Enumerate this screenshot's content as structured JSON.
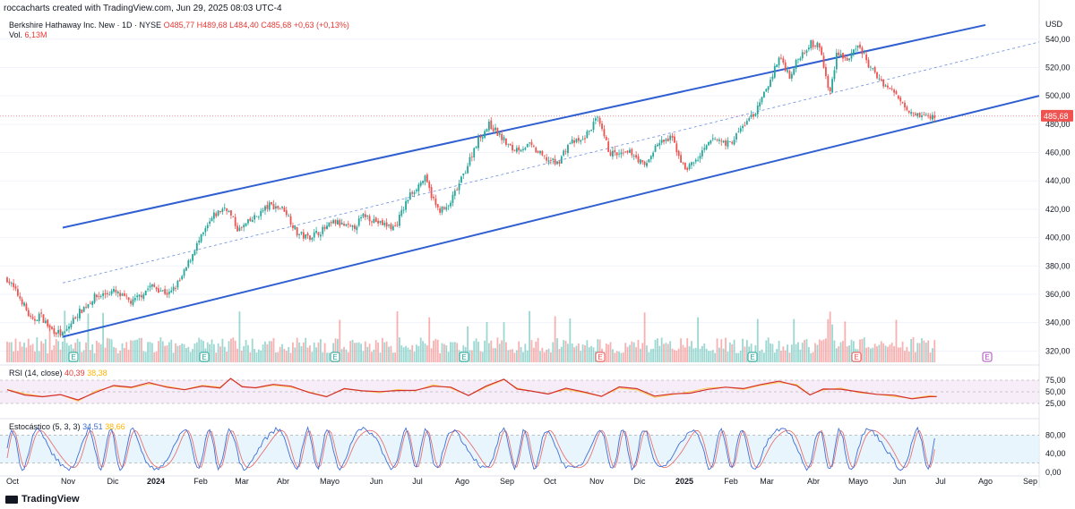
{
  "header": {
    "credit": "roccacharts created with TradingView.com, Jun 29, 2025 08:03 UTC-4"
  },
  "legend": {
    "symbol": "Berkshire Hathaway Inc. New · 1D · NYSE",
    "o": "O485,77",
    "h": "H489,68",
    "l": "L484,40",
    "c": "C485,68",
    "chg": "+0,63 (+0,13%)",
    "vol_label": "Vol.",
    "vol_value": "6,13M"
  },
  "rsi_legend": {
    "label": "RSI (14, close)",
    "value": "40,39",
    "ma": "38,38"
  },
  "stoch_legend": {
    "label": "Estocástico (5, 3, 3)",
    "k": "34,51",
    "d": "38,66"
  },
  "footer": {
    "logo": "TradingView"
  },
  "colors": {
    "up": "#26a69a",
    "down": "#ef5350",
    "channel": "#2f5fd0",
    "rsi": "#d32f2f",
    "rsi_ma": "#fbc02d",
    "stoch_k": "#3f6fd8",
    "stoch_d": "#e57373"
  },
  "chart_data": {
    "type": "candlestick",
    "currency": "USD",
    "last_price": "485,68",
    "y_ticks": [
      "540,00",
      "520,00",
      "500,00",
      "480,00",
      "460,00",
      "440,00",
      "420,00",
      "400,00",
      "380,00",
      "360,00",
      "340,00",
      "320,00"
    ],
    "ylim": [
      312,
      555
    ],
    "x_labels": [
      "Oct",
      "Nov",
      "Dic",
      "2024",
      "Feb",
      "Mar",
      "Abr",
      "Mayo",
      "Jun",
      "Jul",
      "Ago",
      "Sep",
      "Oct",
      "Nov",
      "Dic",
      "2025",
      "Feb",
      "Mar",
      "Abr",
      "Mayo",
      "Jun",
      "Jul",
      "Ago",
      "Sep"
    ],
    "x_label_bold": [
      "2024",
      "2025"
    ],
    "price_path": [
      [
        0,
        371
      ],
      [
        12,
        355
      ],
      [
        20,
        340
      ],
      [
        26,
        346
      ],
      [
        34,
        336
      ],
      [
        45,
        331
      ],
      [
        55,
        345
      ],
      [
        70,
        358
      ],
      [
        85,
        362
      ],
      [
        100,
        354
      ],
      [
        115,
        366
      ],
      [
        130,
        360
      ],
      [
        140,
        372
      ],
      [
        150,
        392
      ],
      [
        158,
        404
      ],
      [
        165,
        415
      ],
      [
        175,
        422
      ],
      [
        185,
        405
      ],
      [
        198,
        414
      ],
      [
        210,
        423
      ],
      [
        222,
        420
      ],
      [
        232,
        403
      ],
      [
        240,
        400
      ],
      [
        252,
        405
      ],
      [
        262,
        411
      ],
      [
        276,
        406
      ],
      [
        286,
        416
      ],
      [
        298,
        410
      ],
      [
        310,
        407
      ],
      [
        322,
        430
      ],
      [
        334,
        442
      ],
      [
        344,
        420
      ],
      [
        352,
        420
      ],
      [
        364,
        442
      ],
      [
        376,
        468
      ],
      [
        386,
        480
      ],
      [
        396,
        470
      ],
      [
        404,
        462
      ],
      [
        418,
        465
      ],
      [
        430,
        456
      ],
      [
        440,
        452
      ],
      [
        450,
        467
      ],
      [
        460,
        468
      ],
      [
        472,
        484
      ],
      [
        482,
        460
      ],
      [
        490,
        458
      ],
      [
        500,
        460
      ],
      [
        510,
        450
      ],
      [
        520,
        466
      ],
      [
        532,
        470
      ],
      [
        542,
        448
      ],
      [
        552,
        455
      ],
      [
        565,
        470
      ],
      [
        578,
        466
      ],
      [
        590,
        480
      ],
      [
        600,
        490
      ],
      [
        610,
        510
      ],
      [
        618,
        528
      ],
      [
        626,
        514
      ],
      [
        634,
        528
      ],
      [
        642,
        537
      ],
      [
        650,
        535
      ],
      [
        658,
        500
      ],
      [
        664,
        532
      ],
      [
        672,
        525
      ],
      [
        682,
        535
      ],
      [
        690,
        520
      ],
      [
        702,
        508
      ],
      [
        712,
        500
      ],
      [
        722,
        490
      ],
      [
        732,
        486
      ],
      [
        742,
        485
      ]
    ],
    "x_step": 1,
    "channel_upper": [
      [
        70,
        407
      ],
      [
        1100,
        550
      ]
    ],
    "channel_lower": [
      [
        70,
        330
      ],
      [
        1160,
        500
      ]
    ],
    "channel_mid": [
      [
        70,
        368
      ],
      [
        1160,
        538
      ]
    ],
    "rsi": {
      "levels": [
        "75,00",
        "50,00",
        "25,00"
      ],
      "path": [
        [
          0,
          55
        ],
        [
          20,
          46
        ],
        [
          40,
          40
        ],
        [
          60,
          44
        ],
        [
          80,
          30
        ],
        [
          100,
          52
        ],
        [
          120,
          62
        ],
        [
          140,
          58
        ],
        [
          160,
          67
        ],
        [
          180,
          62
        ],
        [
          200,
          55
        ],
        [
          220,
          64
        ],
        [
          240,
          60
        ],
        [
          252,
          78
        ],
        [
          265,
          62
        ],
        [
          280,
          58
        ],
        [
          300,
          64
        ],
        [
          320,
          60
        ],
        [
          340,
          50
        ],
        [
          360,
          40
        ],
        [
          380,
          56
        ],
        [
          400,
          52
        ],
        [
          420,
          48
        ],
        [
          440,
          55
        ],
        [
          460,
          52
        ],
        [
          480,
          65
        ],
        [
          500,
          58
        ],
        [
          520,
          42
        ],
        [
          540,
          60
        ],
        [
          560,
          76
        ],
        [
          575,
          58
        ],
        [
          590,
          52
        ],
        [
          610,
          46
        ],
        [
          630,
          55
        ],
        [
          650,
          48
        ],
        [
          670,
          40
        ],
        [
          690,
          58
        ],
        [
          710,
          54
        ],
        [
          730,
          38
        ],
        [
          750,
          44
        ],
        [
          770,
          50
        ],
        [
          790,
          58
        ],
        [
          810,
          60
        ],
        [
          830,
          55
        ],
        [
          850,
          64
        ],
        [
          870,
          70
        ],
        [
          890,
          66
        ],
        [
          905,
          44
        ],
        [
          920,
          54
        ],
        [
          940,
          58
        ],
        [
          960,
          48
        ],
        [
          980,
          45
        ],
        [
          1000,
          40
        ],
        [
          1020,
          36
        ],
        [
          1040,
          42
        ],
        [
          1048,
          40
        ]
      ]
    },
    "stoch": {
      "levels": [
        "80,00",
        "40,00",
        "0,00"
      ],
      "ylim": [
        0,
        100
      ]
    }
  }
}
